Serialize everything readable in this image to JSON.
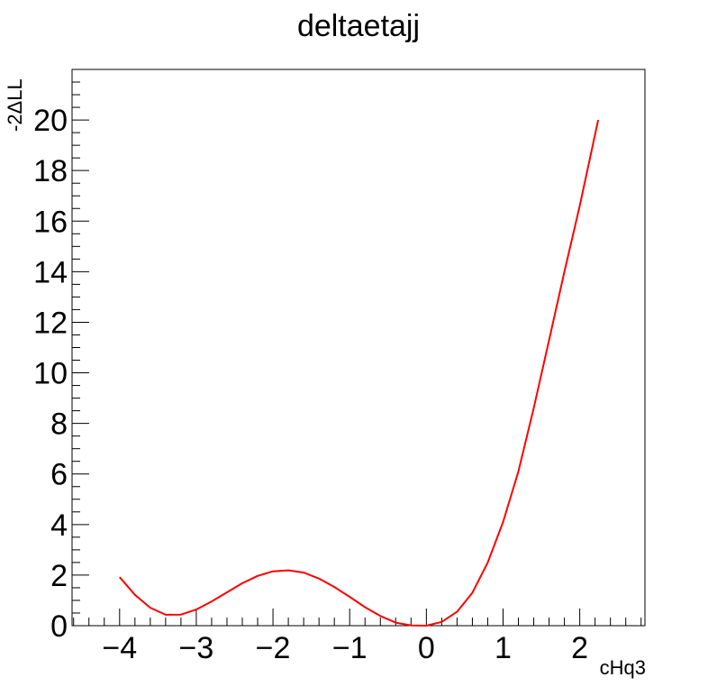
{
  "chart_data": {
    "type": "line",
    "title": "deltaetajj",
    "xlabel": "cHq3",
    "ylabel": "-2ΔLL",
    "xlim": [
      -4.62,
      2.85
    ],
    "ylim": [
      0,
      22
    ],
    "x_ticks": [
      -4,
      -3,
      -2,
      -1,
      0,
      1,
      2
    ],
    "x_tick_labels": [
      "−4",
      "−3",
      "−2",
      "−1",
      "0",
      "1",
      "2"
    ],
    "y_ticks": [
      0,
      2,
      4,
      6,
      8,
      10,
      12,
      14,
      16,
      18,
      20
    ],
    "y_tick_labels": [
      "0",
      "2",
      "4",
      "6",
      "8",
      "10",
      "12",
      "14",
      "16",
      "18",
      "20"
    ],
    "grid": false,
    "series": [
      {
        "color": "#ff0000",
        "x": [
          -4.0,
          -3.8,
          -3.6,
          -3.4,
          -3.2,
          -3.0,
          -2.8,
          -2.6,
          -2.4,
          -2.2,
          -2.0,
          -1.8,
          -1.6,
          -1.4,
          -1.2,
          -1.0,
          -0.8,
          -0.6,
          -0.4,
          -0.2,
          0.0,
          0.2,
          0.4,
          0.6,
          0.8,
          1.0,
          1.2,
          1.4,
          1.6,
          1.8,
          2.0,
          2.24
        ],
        "y": [
          1.92,
          1.22,
          0.71,
          0.43,
          0.44,
          0.64,
          0.96,
          1.32,
          1.68,
          1.97,
          2.15,
          2.19,
          2.1,
          1.86,
          1.53,
          1.14,
          0.73,
          0.38,
          0.12,
          0.01,
          0.0,
          0.15,
          0.55,
          1.3,
          2.5,
          4.1,
          6.1,
          8.6,
          11.3,
          14.0,
          16.6,
          20.0
        ]
      }
    ]
  }
}
